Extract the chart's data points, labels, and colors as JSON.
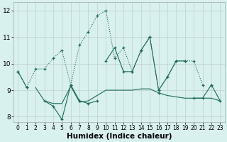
{
  "xlabel": "Humidex (Indice chaleur)",
  "background_color": "#d8f0ee",
  "grid_color": "#c0d0ce",
  "line_color": "#1a6b5a",
  "x_values": [
    0,
    1,
    2,
    3,
    4,
    5,
    6,
    7,
    8,
    9,
    10,
    11,
    12,
    13,
    14,
    15,
    16,
    17,
    18,
    19,
    20,
    21,
    22,
    23
  ],
  "dotted_series": [
    9.7,
    9.1,
    9.8,
    9.8,
    10.2,
    10.5,
    9.2,
    10.7,
    11.2,
    11.8,
    12.0,
    10.2,
    10.6,
    9.7,
    10.5,
    11.0,
    9.0,
    9.5,
    10.1,
    10.1,
    10.1,
    9.2,
    null,
    null
  ],
  "upper_series": [
    9.7,
    9.1,
    null,
    null,
    null,
    null,
    null,
    null,
    null,
    null,
    10.1,
    10.6,
    9.7,
    9.7,
    10.5,
    11.0,
    9.0,
    9.5,
    10.1,
    10.1,
    null,
    null,
    9.2,
    null
  ],
  "lower_series": [
    null,
    null,
    null,
    8.6,
    8.4,
    7.9,
    9.2,
    8.6,
    8.5,
    8.6,
    null,
    null,
    null,
    null,
    null,
    null,
    8.9,
    null,
    null,
    null,
    8.7,
    8.7,
    9.2,
    8.6
  ],
  "flat_series": [
    9.1,
    null,
    9.1,
    8.6,
    8.5,
    8.5,
    9.15,
    8.55,
    8.6,
    8.8,
    9.0,
    9.0,
    9.0,
    9.0,
    9.05,
    9.05,
    8.9,
    8.8,
    8.75,
    8.7,
    8.7,
    8.7,
    8.7,
    8.6
  ],
  "ylim": [
    7.8,
    12.3
  ],
  "xlim": [
    -0.5,
    23.5
  ],
  "yticks": [
    8,
    9,
    10,
    11,
    12
  ],
  "xticks": [
    0,
    1,
    2,
    3,
    4,
    5,
    6,
    7,
    8,
    9,
    10,
    11,
    12,
    13,
    14,
    15,
    16,
    17,
    18,
    19,
    20,
    21,
    22,
    23
  ]
}
